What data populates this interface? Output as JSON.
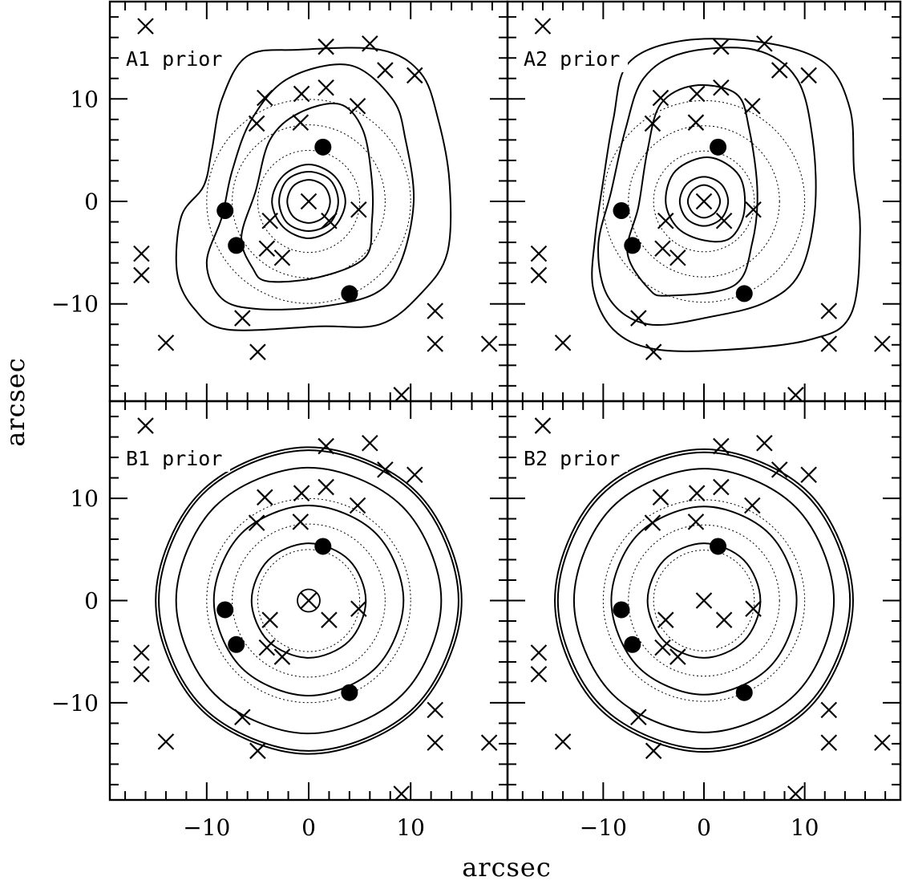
{
  "chart_data": {
    "type": "scatter",
    "xlabel": "arcsec",
    "ylabel": "arcsec",
    "xlim": [
      -19.5,
      19.5
    ],
    "ylim": [
      -19.5,
      19.5
    ],
    "x_ticks": [
      -10,
      0,
      10
    ],
    "y_ticks": [
      -10,
      0,
      10
    ],
    "x_tick_labels": [
      "−10",
      "0",
      "10"
    ],
    "y_tick_labels": [
      "−10",
      "0",
      "10"
    ],
    "grid": false,
    "colors": {
      "ink": "#000000"
    },
    "cross_points": [
      [
        0,
        0
      ],
      [
        -16,
        17.1
      ],
      [
        1.7,
        15.1
      ],
      [
        6,
        15.4
      ],
      [
        7.5,
        12.8
      ],
      [
        10.4,
        12.3
      ],
      [
        -4.3,
        10.1
      ],
      [
        -0.7,
        10.5
      ],
      [
        1.7,
        11.1
      ],
      [
        4.8,
        9.3
      ],
      [
        -5.1,
        7.6
      ],
      [
        -0.8,
        7.7
      ],
      [
        -3.8,
        -1.9
      ],
      [
        4.9,
        -0.8
      ],
      [
        2,
        -1.9
      ],
      [
        -4.1,
        -4.6
      ],
      [
        -2.6,
        -5.5
      ],
      [
        -16.4,
        -5.1
      ],
      [
        -16.4,
        -7.2
      ],
      [
        -6.5,
        -11.4
      ],
      [
        12.4,
        -10.7
      ],
      [
        -14,
        -13.8
      ],
      [
        12.4,
        -13.9
      ],
      [
        -5,
        -14.7
      ],
      [
        17.7,
        -13.9
      ],
      [
        9.1,
        -18.9
      ]
    ],
    "filled_points": [
      [
        1.4,
        5.3
      ],
      [
        -8.2,
        -0.9
      ],
      [
        -7.1,
        -4.3
      ],
      [
        4,
        -9
      ]
    ],
    "dotted_circle_radii": [
      5,
      7.5,
      10
    ],
    "panels": [
      {
        "label": "A1 prior",
        "extra_small_circle": false,
        "contours": [
          [
            [
              0,
              -2.1
            ],
            [
              1.5,
              -1.5
            ],
            [
              2.1,
              0
            ],
            [
              1.5,
              1.5
            ],
            [
              0,
              2.1
            ],
            [
              -1.5,
              1.5
            ],
            [
              -2.1,
              0
            ],
            [
              -1.5,
              -1.5
            ]
          ],
          [
            [
              0,
              -2.9
            ],
            [
              2.1,
              -2.1
            ],
            [
              2.9,
              0
            ],
            [
              2.1,
              2.1
            ],
            [
              0,
              2.9
            ],
            [
              -2.1,
              2.1
            ],
            [
              -2.9,
              0
            ],
            [
              -2.1,
              -2.1
            ]
          ],
          [
            [
              0,
              -3.6
            ],
            [
              2.5,
              -2.5
            ],
            [
              3.6,
              0
            ],
            [
              2.5,
              2.5
            ],
            [
              0,
              3.6
            ],
            [
              -2.5,
              2.5
            ],
            [
              -3.6,
              0
            ],
            [
              -2.5,
              -2.5
            ]
          ],
          [
            [
              -4,
              -7.8
            ],
            [
              1,
              -7.4
            ],
            [
              5.5,
              -5.5
            ],
            [
              6.2,
              -2
            ],
            [
              6.2,
              2
            ],
            [
              5.3,
              7
            ],
            [
              3,
              9.5
            ],
            [
              -1,
              8.6
            ],
            [
              -3.8,
              6
            ],
            [
              -5.2,
              1
            ],
            [
              -6.6,
              -3.5
            ],
            [
              -5.5,
              -6.5
            ]
          ],
          [
            [
              -5,
              -10.5
            ],
            [
              1,
              -10.3
            ],
            [
              6.5,
              -9
            ],
            [
              9,
              -6
            ],
            [
              10.3,
              0
            ],
            [
              9.5,
              6
            ],
            [
              8.2,
              10
            ],
            [
              4,
              13.3
            ],
            [
              -2,
              12
            ],
            [
              -5.6,
              8
            ],
            [
              -7.5,
              3
            ],
            [
              -8.5,
              -1.5
            ],
            [
              -10,
              -6
            ],
            [
              -8.5,
              -9.5
            ]
          ],
          [
            [
              -8,
              -12.5
            ],
            [
              1,
              -12.2
            ],
            [
              7,
              -12
            ],
            [
              11,
              -9
            ],
            [
              13.6,
              -5
            ],
            [
              13.8,
              2
            ],
            [
              12.7,
              8
            ],
            [
              11,
              12.5
            ],
            [
              7,
              14.8
            ],
            [
              -1,
              14.8
            ],
            [
              -6,
              14.2
            ],
            [
              -8.5,
              10
            ],
            [
              -9.5,
              5
            ],
            [
              -10.3,
              1.5
            ],
            [
              -12.5,
              -1.5
            ],
            [
              -12.9,
              -7
            ],
            [
              -11.2,
              -10.5
            ]
          ]
        ]
      },
      {
        "label": "A2 prior",
        "extra_small_circle": false,
        "contours": [
          [
            [
              0,
              -1.6
            ],
            [
              1.1,
              -1.1
            ],
            [
              1.6,
              0
            ],
            [
              1.1,
              1.1
            ],
            [
              0,
              1.6
            ],
            [
              -1.1,
              1.1
            ],
            [
              -1.6,
              0
            ],
            [
              -1.1,
              -1.1
            ]
          ],
          [
            [
              0,
              -2.4
            ],
            [
              1.7,
              -1.7
            ],
            [
              2.4,
              0
            ],
            [
              1.7,
              1.7
            ],
            [
              0,
              2.4
            ],
            [
              -1.7,
              1.7
            ],
            [
              -2.4,
              0
            ],
            [
              -1.7,
              -1.7
            ]
          ],
          [
            [
              0,
              -3.8
            ],
            [
              2.6,
              -3.6
            ],
            [
              4,
              -1
            ],
            [
              3.5,
              2.5
            ],
            [
              0.5,
              4.3
            ],
            [
              -2.8,
              3
            ],
            [
              -3.8,
              0
            ],
            [
              -2.6,
              -2.6
            ]
          ],
          [
            [
              -3.5,
              -9.2
            ],
            [
              3,
              -8.2
            ],
            [
              4.8,
              -4
            ],
            [
              5.3,
              1
            ],
            [
              4.5,
              7
            ],
            [
              3.2,
              10.5
            ],
            [
              -1,
              11.3
            ],
            [
              -4.3,
              9.5
            ],
            [
              -5.6,
              5
            ],
            [
              -6.5,
              -0.5
            ],
            [
              -7.6,
              -5
            ],
            [
              -5.5,
              -8.5
            ]
          ],
          [
            [
              -5.5,
              -12
            ],
            [
              1,
              -11.2
            ],
            [
              6.2,
              -9.8
            ],
            [
              9.5,
              -7
            ],
            [
              11,
              -1
            ],
            [
              10.8,
              6
            ],
            [
              9.2,
              12
            ],
            [
              5,
              14.8
            ],
            [
              -2,
              14.5
            ],
            [
              -6,
              12
            ],
            [
              -7.8,
              7
            ],
            [
              -9.2,
              1
            ],
            [
              -10.5,
              -4.5
            ],
            [
              -9.4,
              -9.5
            ]
          ],
          [
            [
              -5,
              -14.4
            ],
            [
              2,
              -14.5
            ],
            [
              10.5,
              -13.5
            ],
            [
              14.6,
              -11
            ],
            [
              15.5,
              -3
            ],
            [
              14.9,
              3
            ],
            [
              14.5,
              9
            ],
            [
              12,
              13.5
            ],
            [
              6,
              15.5
            ],
            [
              -2,
              15.7
            ],
            [
              -7.5,
              13.5
            ],
            [
              -9,
              8
            ],
            [
              -10,
              2
            ],
            [
              -10.8,
              -3.5
            ],
            [
              -11,
              -8.5
            ],
            [
              -9,
              -12.5
            ]
          ]
        ]
      },
      {
        "label": "B1 prior",
        "extra_small_circle": true,
        "contours": [
          [
            [
              0,
              -5.6
            ],
            [
              3.96,
              -3.96
            ],
            [
              5.6,
              0
            ],
            [
              3.96,
              3.96
            ],
            [
              0,
              5.6
            ],
            [
              -3.96,
              3.96
            ],
            [
              -5.6,
              0
            ],
            [
              -3.96,
              -3.96
            ]
          ],
          [
            [
              0,
              -9.3
            ],
            [
              6.58,
              -6.58
            ],
            [
              9.3,
              0
            ],
            [
              6.58,
              6.58
            ],
            [
              0,
              9.3
            ],
            [
              -6.58,
              6.58
            ],
            [
              -9.3,
              0
            ],
            [
              -6.58,
              -6.58
            ]
          ],
          [
            [
              0,
              -13
            ],
            [
              9.19,
              -9.19
            ],
            [
              13,
              0
            ],
            [
              9.19,
              9.19
            ],
            [
              0,
              13
            ],
            [
              -9.19,
              9.19
            ],
            [
              -13,
              0
            ],
            [
              -9.19,
              -9.19
            ]
          ],
          [
            [
              0,
              -14.7
            ],
            [
              10.4,
              -10.4
            ],
            [
              14.7,
              0
            ],
            [
              10.4,
              10.4
            ],
            [
              0,
              14.7
            ],
            [
              -10.4,
              10.4
            ],
            [
              -14.7,
              0
            ],
            [
              -10.4,
              -10.4
            ]
          ],
          [
            [
              0,
              -15
            ],
            [
              10.6,
              -10.6
            ],
            [
              15,
              0
            ],
            [
              10.6,
              10.6
            ],
            [
              0,
              15
            ],
            [
              -10.6,
              10.6
            ],
            [
              -15,
              0
            ],
            [
              -10.6,
              -10.6
            ]
          ]
        ]
      },
      {
        "label": "B2 prior",
        "extra_small_circle": false,
        "contours": [
          [
            [
              0,
              -5.6
            ],
            [
              3.96,
              -3.96
            ],
            [
              5.6,
              0
            ],
            [
              3.96,
              3.96
            ],
            [
              0,
              5.6
            ],
            [
              -3.96,
              3.96
            ],
            [
              -5.6,
              0
            ],
            [
              -3.96,
              -3.96
            ]
          ],
          [
            [
              0,
              -9.2
            ],
            [
              6.51,
              -6.51
            ],
            [
              9.2,
              0
            ],
            [
              6.51,
              6.51
            ],
            [
              0,
              9.2
            ],
            [
              -6.51,
              6.51
            ],
            [
              -9.2,
              0
            ],
            [
              -6.51,
              -6.51
            ]
          ],
          [
            [
              0,
              -12.9
            ],
            [
              9.12,
              -9.12
            ],
            [
              12.9,
              0
            ],
            [
              9.12,
              9.12
            ],
            [
              0,
              12.9
            ],
            [
              -9.12,
              9.12
            ],
            [
              -12.9,
              0
            ],
            [
              -9.12,
              -9.12
            ]
          ],
          [
            [
              0,
              -14.5
            ],
            [
              10.25,
              -10.25
            ],
            [
              14.5,
              0
            ],
            [
              10.25,
              10.25
            ],
            [
              0,
              14.5
            ],
            [
              -10.25,
              10.25
            ],
            [
              -14.5,
              0
            ],
            [
              -10.25,
              -10.25
            ]
          ],
          [
            [
              0,
              -14.8
            ],
            [
              10.47,
              -10.47
            ],
            [
              14.8,
              0
            ],
            [
              10.47,
              10.47
            ],
            [
              0,
              14.8
            ],
            [
              -10.47,
              10.47
            ],
            [
              -14.8,
              0
            ],
            [
              -10.47,
              -10.47
            ]
          ]
        ]
      }
    ]
  }
}
